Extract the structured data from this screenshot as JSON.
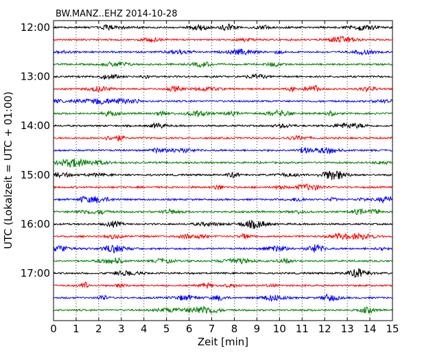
{
  "chart_data": {
    "type": "line",
    "title": "BW.MANZ..EHZ 2014-10-28",
    "xlabel": "Zeit  [min]",
    "ylabel": "UTC (Lokalzeit = UTC + 01:00)",
    "xlim": [
      0,
      15
    ],
    "x_ticks": [
      "0",
      "1",
      "2",
      "3",
      "4",
      "5",
      "6",
      "7",
      "8",
      "9",
      "10",
      "11",
      "12",
      "13",
      "14",
      "15"
    ],
    "y_ticks": [
      "12:00",
      "13:00",
      "14:00",
      "15:00",
      "16:00",
      "17:00"
    ],
    "trace_start": "12:00",
    "trace_interval_min": 15,
    "trace_count": 24,
    "trace_colors": [
      "#000000",
      "#ff0000",
      "#0000ff",
      "#007f00"
    ],
    "grid": "vertical dotted at each minute"
  }
}
